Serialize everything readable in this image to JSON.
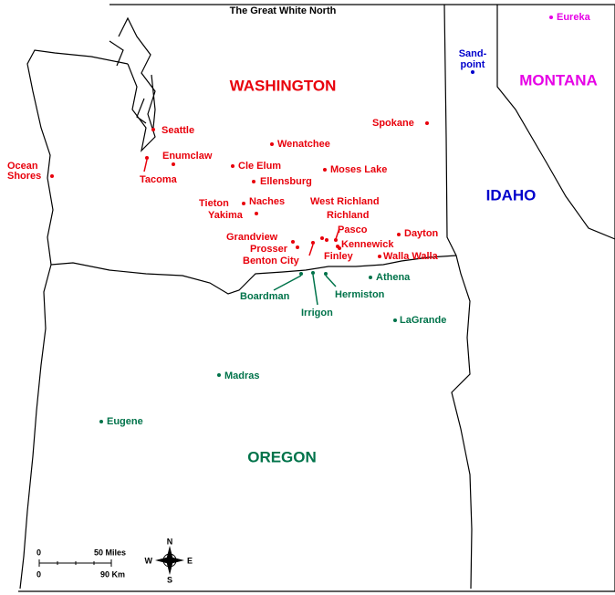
{
  "title": "The Great White North",
  "states": [
    "WASHINGTON",
    "OREGON",
    "IDAHO",
    "MONTANA"
  ],
  "cities": {
    "washington": [
      "Seattle",
      "Enumclaw",
      "Tacoma",
      [
        "Ocean",
        "Shores"
      ],
      "Cle Elum",
      "Wenatchee",
      "Spokane",
      "Moses Lake",
      "Ellensburg",
      "Tieton",
      "Naches",
      "Yakima",
      "West Richland",
      "Richland",
      "Pasco",
      "Grandview",
      "Prosser",
      "Benton City",
      "Kennewick",
      "Finley",
      "Dayton",
      "Walla Walla"
    ],
    "oregon": [
      "Athena",
      "Hermiston",
      "Irrigon",
      "Boardman",
      "LaGrande",
      "Madras",
      "Eugene"
    ],
    "idaho": [
      [
        "Sand-",
        "point"
      ]
    ],
    "montana": [
      "Eureka"
    ]
  },
  "scale": {
    "miles": [
      "0",
      "50 Miles"
    ],
    "km": [
      "0",
      "90 Km"
    ]
  },
  "compass": [
    "N",
    "E",
    "S",
    "W"
  ]
}
